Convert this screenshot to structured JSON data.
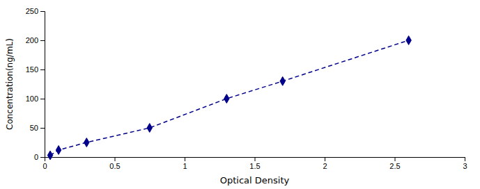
{
  "chart_data": {
    "type": "line",
    "x": [
      0.04,
      0.1,
      0.3,
      0.75,
      1.3,
      1.7,
      2.6
    ],
    "values": [
      3,
      12,
      25,
      50,
      100,
      130,
      200
    ],
    "color": "#00008B",
    "marker": "diamond",
    "line_style": "dashed",
    "xlabel": "Optical Density",
    "ylabel": "Concentration(ng/mL)",
    "xlim": [
      0,
      3
    ],
    "ylim": [
      0,
      250
    ],
    "xticks": [
      0,
      0.5,
      1,
      1.5,
      2,
      2.5,
      3
    ],
    "yticks": [
      0,
      50,
      100,
      150,
      200,
      250
    ],
    "grid": false
  }
}
